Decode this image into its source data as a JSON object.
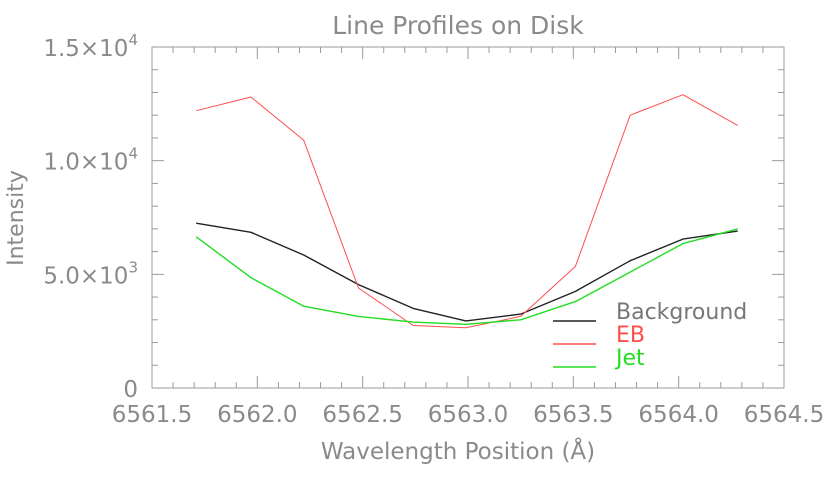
{
  "chart_data": {
    "type": "line",
    "title": "Line Profiles on Disk",
    "xlabel": "Wavelength Position (Å)",
    "ylabel": "Intensity",
    "xlim": [
      6561.5,
      6564.5
    ],
    "ylim": [
      0,
      15000
    ],
    "x_ticks": [
      6561.5,
      6562.0,
      6562.5,
      6563.0,
      6563.5,
      6564.0,
      6564.5
    ],
    "x_tick_labels": [
      "6561.5",
      "6562.0",
      "6562.5",
      "6563.0",
      "6563.5",
      "6564.0",
      "6564.5"
    ],
    "y_ticks": [
      0,
      5000,
      10000,
      15000
    ],
    "y_tick_labels": [
      {
        "mantissa": "0",
        "exponent": ""
      },
      {
        "mantissa": "5.0×10",
        "exponent": "3"
      },
      {
        "mantissa": "1.0×10",
        "exponent": "4"
      },
      {
        "mantissa": "1.5×10",
        "exponent": "4"
      }
    ],
    "grid": false,
    "legend_position": "bottom-right",
    "x": [
      6561.71,
      6561.97,
      6562.22,
      6562.48,
      6562.74,
      6562.99,
      6563.25,
      6563.51,
      6563.77,
      6564.02,
      6564.28
    ],
    "series": [
      {
        "name": "Background",
        "color": "#222222",
        "values": [
          7250,
          6850,
          5850,
          4550,
          3500,
          2950,
          3250,
          4250,
          5600,
          6550,
          6900
        ]
      },
      {
        "name": "EB",
        "color": "#ff4d4d",
        "values": [
          12200,
          12800,
          10900,
          4400,
          2750,
          2650,
          3150,
          5350,
          12000,
          12900,
          11550
        ]
      },
      {
        "name": "Jet",
        "color": "#22dd22",
        "values": [
          6650,
          4850,
          3600,
          3150,
          2900,
          2800,
          3000,
          3800,
          5100,
          6350,
          7000
        ]
      }
    ]
  }
}
